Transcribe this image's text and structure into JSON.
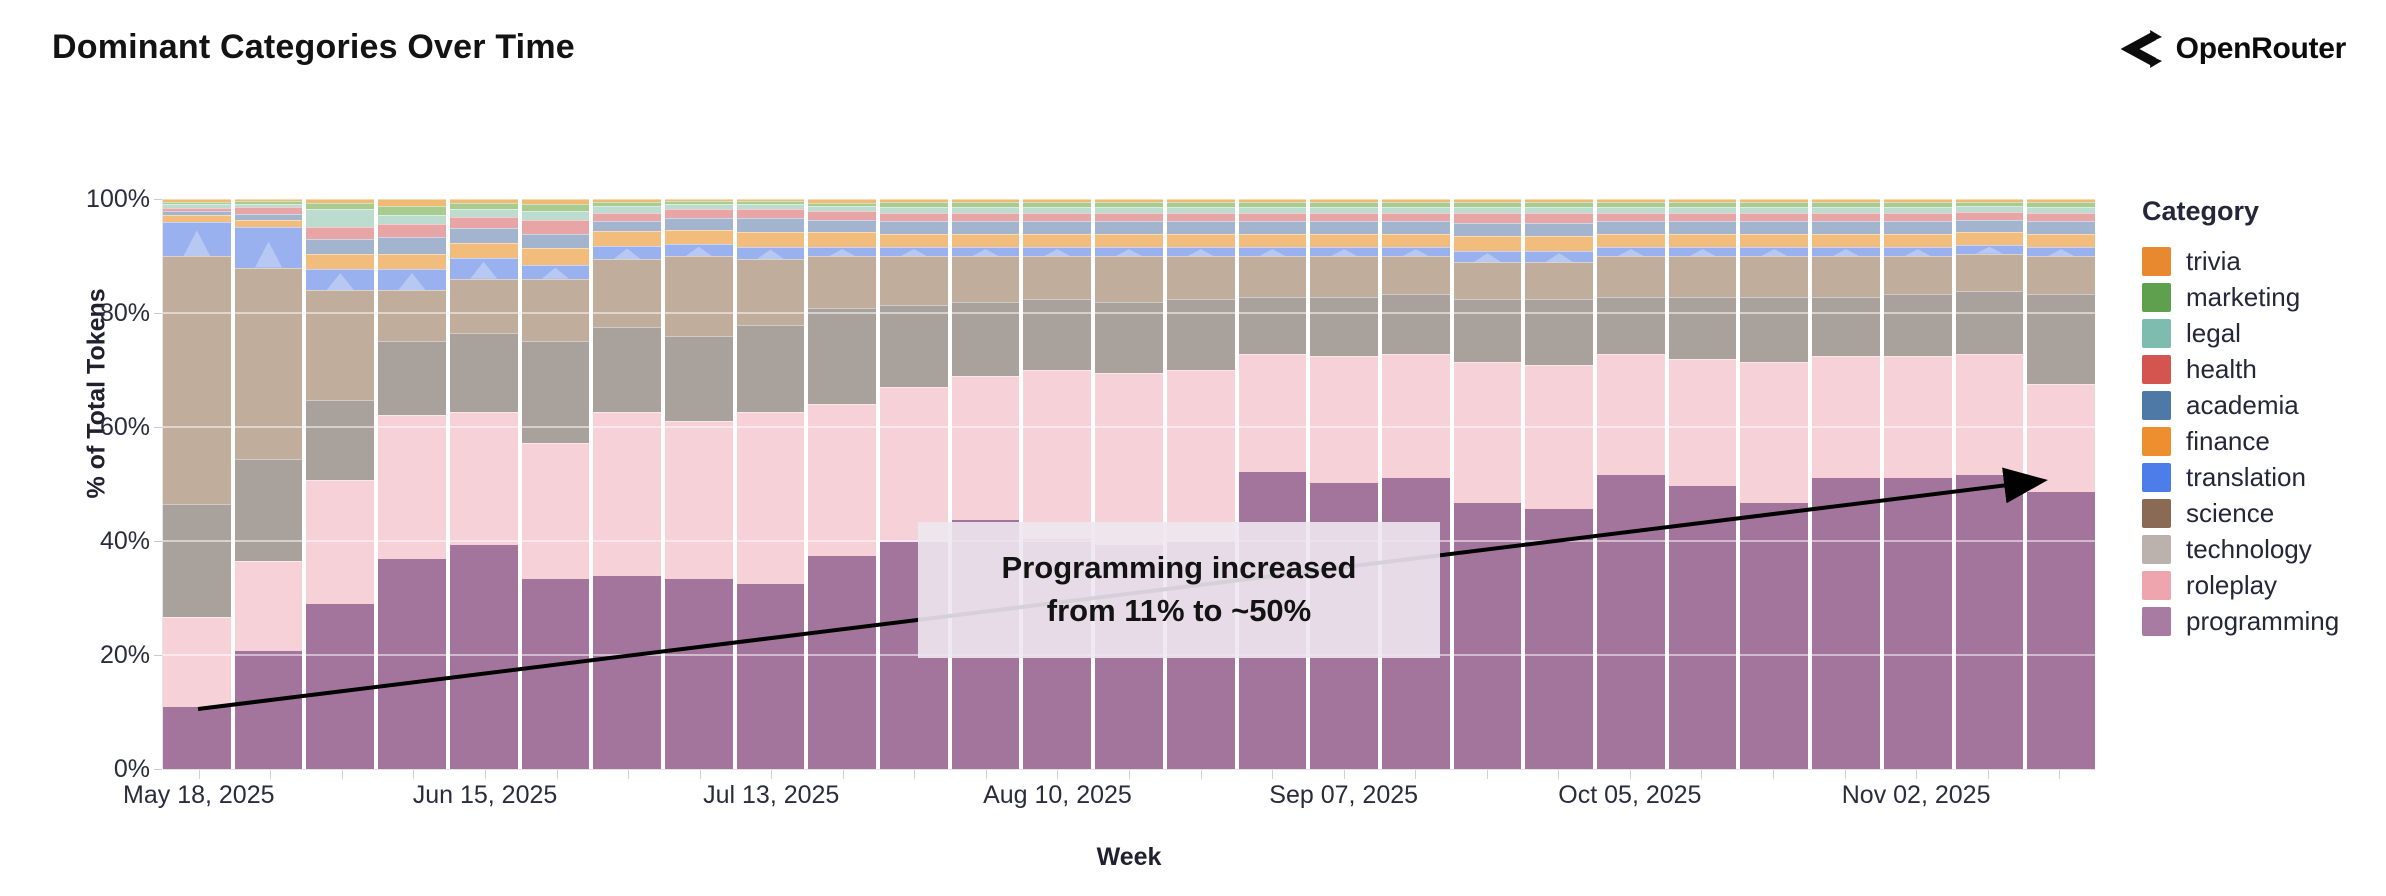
{
  "header": {
    "title": "Dominant Categories Over Time",
    "brand": "OpenRouter"
  },
  "chart_data": {
    "type": "bar",
    "variant": "stacked-normalized",
    "title": "Dominant Categories Over Time",
    "xlabel": "Week",
    "ylabel": "% of Total Tokens",
    "ylim": [
      0,
      100
    ],
    "ytick_labels": [
      "0%",
      "20%",
      "40%",
      "60%",
      "80%",
      "100%"
    ],
    "grid": "horizontal",
    "legend_position": "right",
    "legend_title": "Category",
    "weeks_count": 27,
    "x_ticks": [
      {
        "bar_index": 0,
        "label": "May 18, 2025"
      },
      {
        "bar_index": 4,
        "label": "Jun 15, 2025"
      },
      {
        "bar_index": 8,
        "label": "Jul 13, 2025"
      },
      {
        "bar_index": 12,
        "label": "Aug 10, 2025"
      },
      {
        "bar_index": 16,
        "label": "Sep 07, 2025"
      },
      {
        "bar_index": 20,
        "label": "Oct 05, 2025"
      },
      {
        "bar_index": 24,
        "label": "Nov 02, 2025"
      }
    ],
    "series": [
      {
        "name": "trivia",
        "legend_color": "#E8892F",
        "bar_color": "#F1BA74",
        "values": [
          0.3,
          0.2,
          0.5,
          1.0,
          0.5,
          0.8,
          0.4,
          0.2,
          0.2,
          0.5,
          0.4,
          0.4,
          0.4,
          0.4,
          0.4,
          0.4,
          0.4,
          0.4,
          0.4,
          0.4,
          0.4,
          0.4,
          0.4,
          0.4,
          0.4,
          0.4,
          0.4
        ]
      },
      {
        "name": "marketing",
        "legend_color": "#5FA04E",
        "bar_color": "#A9CB8D",
        "values": [
          0.3,
          0.3,
          1.0,
          1.5,
          1.0,
          0.9,
          0.5,
          0.4,
          0.4,
          0.4,
          0.6,
          0.6,
          0.6,
          0.6,
          0.6,
          0.6,
          0.6,
          0.6,
          0.6,
          0.6,
          0.6,
          0.6,
          0.6,
          0.6,
          0.6,
          0.5,
          0.6
        ]
      },
      {
        "name": "legal",
        "legend_color": "#7FBCB0",
        "bar_color": "#BBDCCE",
        "values": [
          0.4,
          0.4,
          3.0,
          1.5,
          1.2,
          1.6,
          1.0,
          0.7,
          0.6,
          0.8,
          0.9,
          0.9,
          0.9,
          0.9,
          0.9,
          0.9,
          0.9,
          0.9,
          1.0,
          1.0,
          0.9,
          0.9,
          0.9,
          0.9,
          0.9,
          0.9,
          0.9
        ]
      },
      {
        "name": "health",
        "legend_color": "#D4554F",
        "bar_color": "#E7A5A5",
        "values": [
          0.5,
          1.0,
          2.0,
          2.0,
          1.8,
          2.2,
          1.4,
          1.3,
          1.5,
          1.3,
          1.4,
          1.4,
          1.4,
          1.4,
          1.4,
          1.4,
          1.4,
          1.4,
          1.6,
          1.6,
          1.4,
          1.4,
          1.4,
          1.4,
          1.4,
          1.3,
          1.4
        ]
      },
      {
        "name": "academia",
        "legend_color": "#4E79A7",
        "bar_color": "#A3B4CE",
        "values": [
          0.5,
          0.9,
          2.5,
          3.0,
          2.5,
          2.4,
          1.6,
          2.0,
          2.3,
          2.0,
          2.0,
          2.0,
          2.0,
          2.0,
          2.0,
          2.0,
          2.0,
          2.0,
          2.2,
          2.2,
          2.0,
          2.0,
          2.0,
          2.0,
          2.0,
          1.9,
          2.0
        ]
      },
      {
        "name": "finance",
        "legend_color": "#EE8F2F",
        "bar_color": "#F2BC7D",
        "values": [
          1.0,
          1.2,
          2.5,
          2.5,
          2.5,
          2.8,
          2.4,
          2.4,
          2.5,
          2.5,
          2.2,
          2.2,
          2.2,
          2.2,
          2.2,
          2.2,
          2.2,
          2.2,
          2.4,
          2.4,
          2.2,
          2.2,
          2.2,
          2.2,
          2.2,
          2.1,
          2.2
        ]
      },
      {
        "name": "translation",
        "legend_color": "#4C7DE8",
        "bar_color": "#99B1EE",
        "values": [
          6.0,
          7.0,
          3.5,
          3.5,
          3.5,
          2.3,
          2.2,
          2.0,
          2.0,
          1.5,
          1.5,
          1.5,
          1.5,
          1.5,
          1.5,
          1.5,
          1.5,
          1.5,
          1.8,
          1.8,
          1.5,
          1.5,
          1.5,
          1.5,
          1.5,
          1.4,
          1.5
        ]
      },
      {
        "name": "science",
        "legend_color": "#8A6A52",
        "bar_color": "#C1AD9B",
        "values": [
          44,
          34,
          19.5,
          9,
          9.5,
          11,
          12,
          14,
          11.5,
          9,
          8.5,
          8,
          7.5,
          8,
          7.5,
          7,
          7,
          6.5,
          6.5,
          6.5,
          7,
          7,
          7,
          7,
          6.5,
          6.5,
          6.5
        ]
      },
      {
        "name": "technology",
        "legend_color": "#BCB2AD",
        "bar_color": "#A9A19C",
        "values": [
          20,
          18,
          14,
          13,
          14,
          18,
          15,
          15,
          15.5,
          17,
          14.5,
          13,
          12.5,
          12.5,
          12.5,
          10,
          10.5,
          10.5,
          11,
          11.5,
          10,
          11,
          11.5,
          10.5,
          11,
          11,
          16
        ]
      },
      {
        "name": "roleplay",
        "legend_color": "#EFA5AE",
        "bar_color": "#F7D1D8",
        "values": [
          16,
          16,
          22,
          25.5,
          23.5,
          24,
          29,
          28,
          30.5,
          27,
          27.5,
          25.5,
          30,
          30.5,
          30.5,
          21,
          22.5,
          22,
          25,
          25.5,
          21.5,
          22.5,
          25,
          21.5,
          21.5,
          21.5,
          19
        ]
      },
      {
        "name": "programming",
        "legend_color": "#A87BA3",
        "bar_color": "#A3749C",
        "values": [
          11,
          21,
          29.5,
          37.5,
          40,
          34,
          34.5,
          34,
          33,
          38,
          40.5,
          44.5,
          41,
          40,
          40.5,
          53,
          51,
          52,
          47.5,
          46.5,
          52.5,
          50.5,
          47.5,
          52,
          52,
          52.5,
          49.5
        ]
      }
    ],
    "annotation": {
      "line1": "Programming increased",
      "line2": "from 11% to ~50%",
      "arrow_from": {
        "week_index": 0,
        "pct": 11
      },
      "arrow_to": {
        "week_index": 26,
        "pct": 50
      }
    }
  }
}
